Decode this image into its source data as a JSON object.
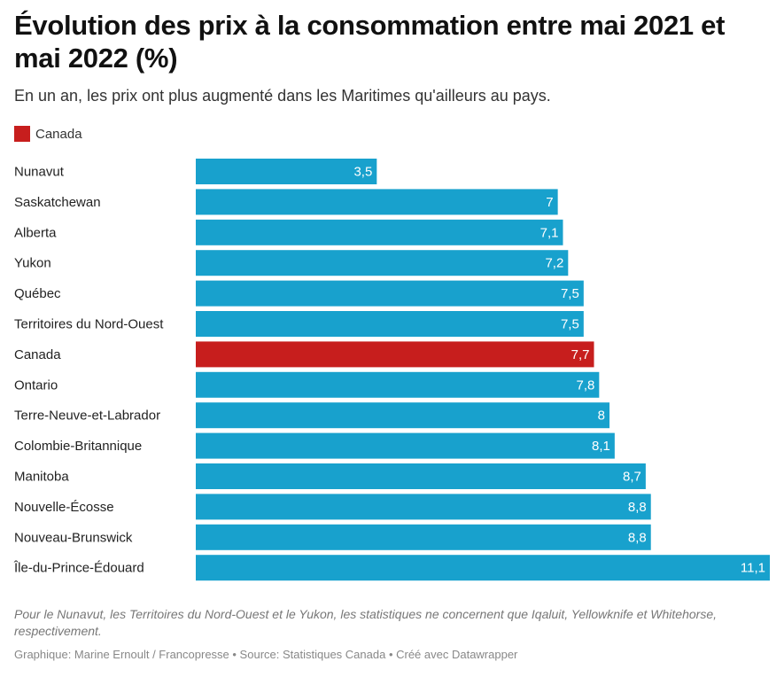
{
  "title": "Évolution des prix à la consommation entre mai 2021 et mai 2022 (%)",
  "subtitle": "En un an, les prix ont plus augmenté dans les Maritimes qu'ailleurs au pays.",
  "legend": {
    "label": "Canada",
    "color": "#c71e1d"
  },
  "colors": {
    "bar": "#18a1cd",
    "highlight": "#c71e1d"
  },
  "note": "Pour le Nunavut, les Territoires du Nord-Ouest et le Yukon, les statistiques ne concernent que Iqaluit, Yellowknife et Whitehorse, respectivement.",
  "credit": "Graphique: Marine Ernoult / Francopresse • Source: Statistiques Canada • Créé avec Datawrapper",
  "chart_data": {
    "type": "bar",
    "orientation": "horizontal",
    "highlight": "Canada",
    "categories": [
      "Nunavut",
      "Saskatchewan",
      "Alberta",
      "Yukon",
      "Québec",
      "Territoires du Nord-Ouest",
      "Canada",
      "Ontario",
      "Terre-Neuve-et-Labrador",
      "Colombie-Britannique",
      "Manitoba",
      "Nouvelle-Écosse",
      "Nouveau-Brunswick",
      "Île-du-Prince-Édouard"
    ],
    "values": [
      3.5,
      7,
      7.1,
      7.2,
      7.5,
      7.5,
      7.7,
      7.8,
      8,
      8.1,
      8.7,
      8.8,
      8.8,
      11.1
    ],
    "value_labels": [
      "3,5",
      "7",
      "7,1",
      "7,2",
      "7,5",
      "7,5",
      "7,7",
      "7,8",
      "8",
      "8,1",
      "8,7",
      "8,8",
      "8,8",
      "11,1"
    ],
    "xlim": [
      0,
      11.1
    ]
  }
}
